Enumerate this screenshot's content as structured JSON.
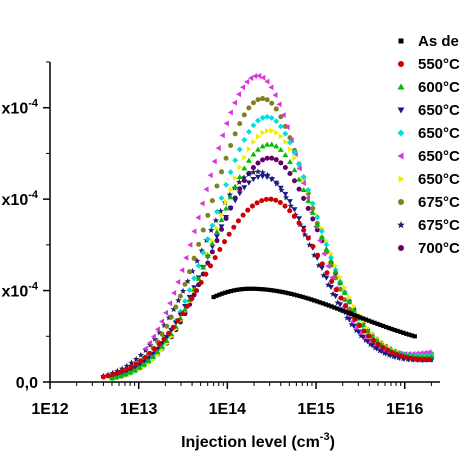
{
  "chart_data": {
    "type": "scatter",
    "title": "",
    "xlabel": "Injection level (cm",
    "xlabel_sup": "-3",
    "xlabel_close": ")",
    "ylabel": "",
    "x_scale": "log",
    "xlim": [
      1000000000000.0,
      2.5e+16
    ],
    "ylim": [
      0,
      3.5
    ],
    "x_ticks": [
      {
        "value": 1000000000000.0,
        "label": "1E12"
      },
      {
        "value": 10000000000000.0,
        "label": "1E13"
      },
      {
        "value": 100000000000000.0,
        "label": "1E14"
      },
      {
        "value": 1000000000000000.0,
        "label": "1E15"
      },
      {
        "value": 1e+16,
        "label": "1E16"
      }
    ],
    "y_ticks": [
      {
        "value": 0,
        "label": "0,0"
      },
      {
        "value": 1,
        "label": "x10-4"
      },
      {
        "value": 2,
        "label": "x10-4"
      },
      {
        "value": 3,
        "label": "x10-4"
      }
    ],
    "y_tick_suffix": "-4",
    "legend_position": "right",
    "series": [
      {
        "name": "As de",
        "color": "#000000",
        "marker": "square",
        "xmin": 70000000000000.0,
        "xmax": 1.3e+16,
        "peak_x": 180000000000000.0,
        "peak_y": 1.02,
        "w_lo": 0.95,
        "w_hi": 1.35,
        "end_y": 0.17
      },
      {
        "name": "550°C",
        "color": "#cc0000",
        "marker": "circle",
        "xmin": 4000000000000.0,
        "xmax": 1.9e+16,
        "peak_x": 300000000000000.0,
        "peak_y": 2.0,
        "w_lo": 0.7,
        "w_hi": 0.62,
        "end_y": 0.22
      },
      {
        "name": "600°C",
        "color": "#00bb00",
        "marker": "triangle-up",
        "xmin": 5000000000000.0,
        "xmax": 2e+16,
        "peak_x": 300000000000000.0,
        "peak_y": 2.6,
        "w_lo": 0.62,
        "w_hi": 0.58,
        "end_y": 0.26
      },
      {
        "name": "650°C",
        "color": "#1a1a8c",
        "marker": "triangle-down",
        "xmin": 5000000000000.0,
        "xmax": 2e+16,
        "peak_x": 250000000000000.0,
        "peak_y": 2.25,
        "w_lo": 0.62,
        "w_hi": 0.6,
        "end_y": 0.23
      },
      {
        "name": "650°C",
        "color": "#00dddd",
        "marker": "diamond",
        "xmin": 5000000000000.0,
        "xmax": 2e+16,
        "peak_x": 280000000000000.0,
        "peak_y": 2.9,
        "w_lo": 0.6,
        "w_hi": 0.57,
        "end_y": 0.28
      },
      {
        "name": "650°C",
        "color": "#dd33dd",
        "marker": "triangle-left",
        "xmin": 12000000000000.0,
        "xmax": 1.9e+16,
        "peak_x": 220000000000000.0,
        "peak_y": 3.35,
        "w_lo": 0.6,
        "w_hi": 0.55,
        "end_y": 0.32
      },
      {
        "name": "650°C",
        "color": "#eeee00",
        "marker": "triangle-right",
        "xmin": 5000000000000.0,
        "xmax": 2e+16,
        "peak_x": 300000000000000.0,
        "peak_y": 2.75,
        "w_lo": 0.6,
        "w_hi": 0.58,
        "end_y": 0.27
      },
      {
        "name": "675°C",
        "color": "#808020",
        "marker": "circle",
        "xmin": 5000000000000.0,
        "xmax": 2e+16,
        "peak_x": 250000000000000.0,
        "peak_y": 3.1,
        "w_lo": 0.6,
        "w_hi": 0.56,
        "end_y": 0.3
      },
      {
        "name": "675°C",
        "color": "#1f1f6b",
        "marker": "star",
        "xmin": 4000000000000.0,
        "xmax": 2e+16,
        "peak_x": 220000000000000.0,
        "peak_y": 2.3,
        "w_lo": 0.65,
        "w_hi": 0.62,
        "end_y": 0.23
      },
      {
        "name": "700°C",
        "color": "#660066",
        "marker": "circle",
        "xmin": 5000000000000.0,
        "xmax": 2e+16,
        "peak_x": 300000000000000.0,
        "peak_y": 2.45,
        "w_lo": 0.62,
        "w_hi": 0.6,
        "end_y": 0.25
      }
    ]
  }
}
